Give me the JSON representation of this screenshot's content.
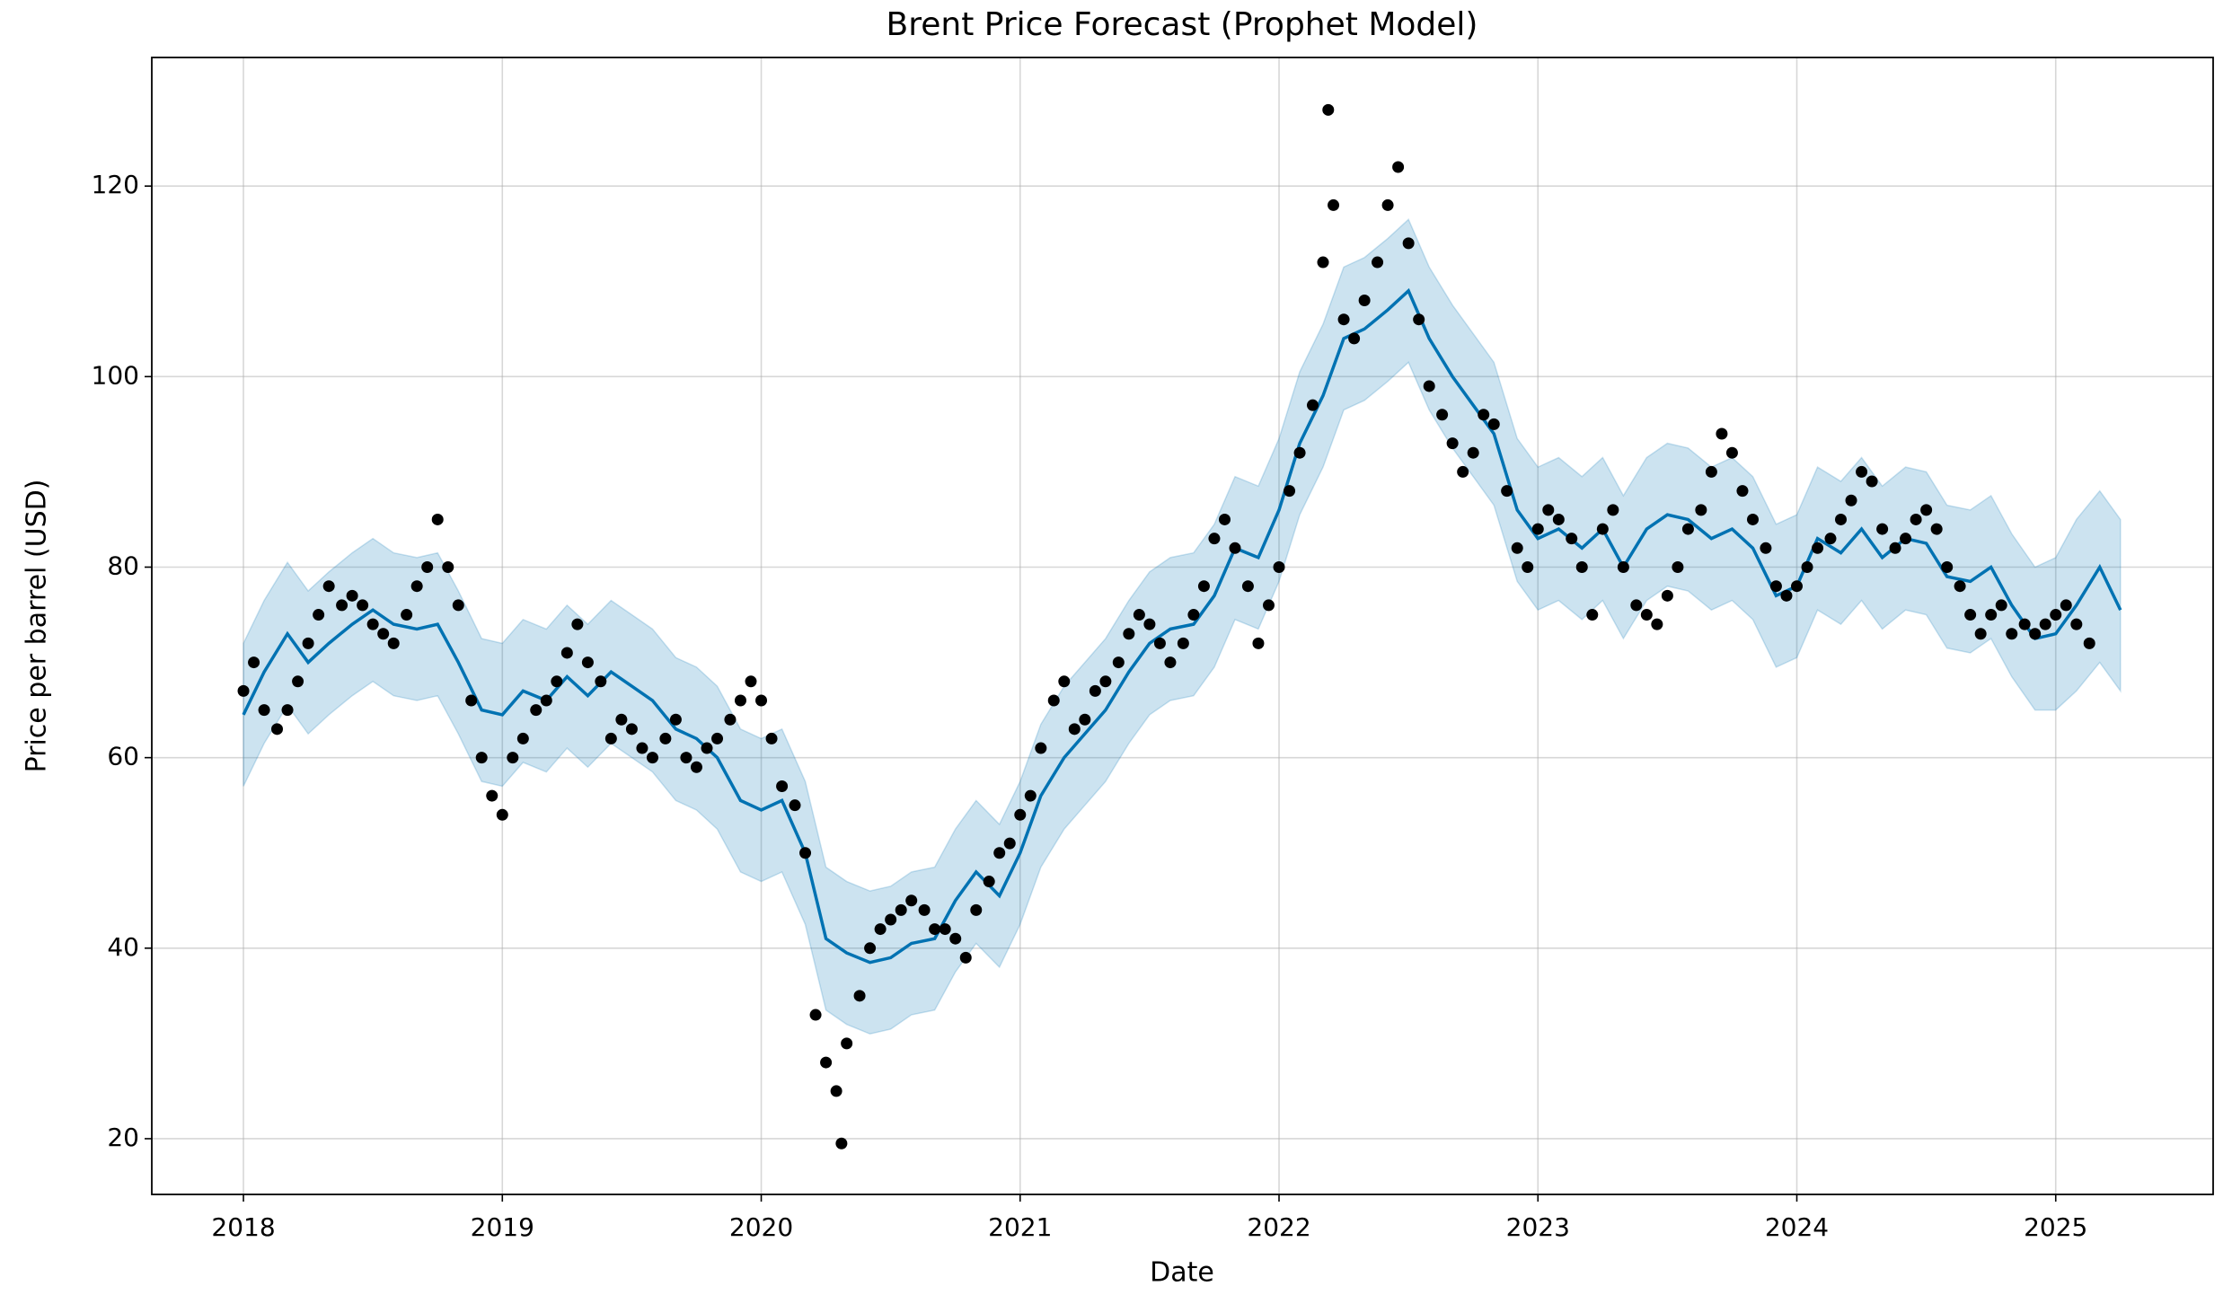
{
  "chart_data": {
    "type": "forecast",
    "title": "Brent Price Forecast (Prophet Model)",
    "x_label": "Date",
    "y_label": "Price per barrel (USD)",
    "xlim": [
      2017.646,
      2025.608
    ],
    "ylim": [
      14.15,
      133.5
    ],
    "xticks": [
      2018,
      2019,
      2020,
      2021,
      2022,
      2023,
      2024,
      2025
    ],
    "yticks": [
      20,
      40,
      60,
      80,
      100,
      120
    ],
    "grid": true,
    "series": [
      {
        "type": "scatter",
        "color": "#000000",
        "x": [
          2018.0,
          2018.04,
          2018.08,
          2018.13,
          2018.17,
          2018.21,
          2018.25,
          2018.29,
          2018.33,
          2018.38,
          2018.42,
          2018.46,
          2018.5,
          2018.54,
          2018.58,
          2018.63,
          2018.67,
          2018.71,
          2018.75,
          2018.79,
          2018.83,
          2018.88,
          2018.92,
          2018.96,
          2019.0,
          2019.04,
          2019.08,
          2019.13,
          2019.17,
          2019.21,
          2019.25,
          2019.29,
          2019.33,
          2019.38,
          2019.42,
          2019.46,
          2019.5,
          2019.54,
          2019.58,
          2019.63,
          2019.67,
          2019.71,
          2019.75,
          2019.79,
          2019.83,
          2019.88,
          2019.92,
          2019.96,
          2020.0,
          2020.04,
          2020.08,
          2020.13,
          2020.17,
          2020.21,
          2020.25,
          2020.29,
          2020.31,
          2020.33,
          2020.38,
          2020.42,
          2020.46,
          2020.5,
          2020.54,
          2020.58,
          2020.63,
          2020.67,
          2020.71,
          2020.75,
          2020.79,
          2020.83,
          2020.88,
          2020.92,
          2020.96,
          2021.0,
          2021.04,
          2021.08,
          2021.13,
          2021.17,
          2021.21,
          2021.25,
          2021.29,
          2021.33,
          2021.38,
          2021.42,
          2021.46,
          2021.5,
          2021.54,
          2021.58,
          2021.63,
          2021.67,
          2021.71,
          2021.75,
          2021.79,
          2021.83,
          2021.88,
          2021.92,
          2021.96,
          2022.0,
          2022.04,
          2022.08,
          2022.13,
          2022.17,
          2022.19,
          2022.21,
          2022.25,
          2022.29,
          2022.33,
          2022.38,
          2022.42,
          2022.46,
          2022.5,
          2022.54,
          2022.58,
          2022.63,
          2022.67,
          2022.71,
          2022.75,
          2022.79,
          2022.83,
          2022.88,
          2022.92,
          2022.96,
          2023.0,
          2023.04,
          2023.08,
          2023.13,
          2023.17,
          2023.21,
          2023.25,
          2023.29,
          2023.33,
          2023.38,
          2023.42,
          2023.46,
          2023.5,
          2023.54,
          2023.58,
          2023.63,
          2023.67,
          2023.71,
          2023.75,
          2023.79,
          2023.83,
          2023.88,
          2023.92,
          2023.96,
          2024.0,
          2024.04,
          2024.08,
          2024.13,
          2024.17,
          2024.21,
          2024.25,
          2024.29,
          2024.33,
          2024.38,
          2024.42,
          2024.46,
          2024.5,
          2024.54,
          2024.58,
          2024.63,
          2024.67,
          2024.71,
          2024.75,
          2024.79,
          2024.83,
          2024.88,
          2024.92,
          2024.96,
          2025.0,
          2025.04,
          2025.08,
          2025.13
        ],
        "values": [
          67,
          70,
          65,
          63,
          65,
          68,
          72,
          75,
          78,
          76,
          77,
          76,
          74,
          73,
          72,
          75,
          78,
          80,
          85,
          80,
          76,
          66,
          60,
          56,
          54,
          60,
          62,
          65,
          66,
          68,
          71,
          74,
          70,
          68,
          62,
          64,
          63,
          61,
          60,
          62,
          64,
          60,
          59,
          61,
          62,
          64,
          66,
          68,
          66,
          62,
          57,
          55,
          50,
          33,
          28,
          25,
          19.5,
          30,
          35,
          40,
          42,
          43,
          44,
          45,
          44,
          42,
          42,
          41,
          39,
          44,
          47,
          50,
          51,
          54,
          56,
          61,
          66,
          68,
          63,
          64,
          67,
          68,
          70,
          73,
          75,
          74,
          72,
          70,
          72,
          75,
          78,
          83,
          85,
          82,
          78,
          72,
          76,
          80,
          88,
          92,
          97,
          112,
          128,
          118,
          106,
          104,
          108,
          112,
          118,
          122,
          114,
          106,
          99,
          96,
          93,
          90,
          92,
          96,
          95,
          88,
          82,
          80,
          84,
          86,
          85,
          83,
          80,
          75,
          84,
          86,
          80,
          76,
          75,
          74,
          77,
          80,
          84,
          86,
          90,
          94,
          92,
          88,
          85,
          82,
          78,
          77,
          78,
          80,
          82,
          83,
          85,
          87,
          90,
          89,
          84,
          82,
          83,
          85,
          86,
          84,
          80,
          78,
          75,
          73,
          75,
          76,
          73,
          74,
          73,
          74,
          75,
          76,
          74,
          72
        ]
      },
      {
        "type": "line",
        "color": "#0072b2",
        "x": [
          2018.0,
          2018.08,
          2018.17,
          2018.25,
          2018.33,
          2018.42,
          2018.5,
          2018.58,
          2018.67,
          2018.75,
          2018.83,
          2018.92,
          2019.0,
          2019.08,
          2019.17,
          2019.25,
          2019.33,
          2019.42,
          2019.5,
          2019.58,
          2019.67,
          2019.75,
          2019.83,
          2019.92,
          2020.0,
          2020.08,
          2020.17,
          2020.25,
          2020.33,
          2020.42,
          2020.5,
          2020.58,
          2020.67,
          2020.75,
          2020.83,
          2020.92,
          2021.0,
          2021.08,
          2021.17,
          2021.25,
          2021.33,
          2021.42,
          2021.5,
          2021.58,
          2021.67,
          2021.75,
          2021.83,
          2021.92,
          2022.0,
          2022.08,
          2022.17,
          2022.25,
          2022.33,
          2022.42,
          2022.5,
          2022.58,
          2022.67,
          2022.75,
          2022.83,
          2022.92,
          2023.0,
          2023.08,
          2023.17,
          2023.25,
          2023.33,
          2023.42,
          2023.5,
          2023.58,
          2023.67,
          2023.75,
          2023.83,
          2023.92,
          2024.0,
          2024.08,
          2024.17,
          2024.25,
          2024.33,
          2024.42,
          2024.5,
          2024.58,
          2024.67,
          2024.75,
          2024.83,
          2024.92,
          2025.0,
          2025.08,
          2025.17,
          2025.25
        ],
        "values": [
          64.5,
          69,
          73,
          70,
          72,
          74,
          75.5,
          74,
          73.5,
          74,
          70,
          65,
          64.5,
          67,
          66,
          68.5,
          66.5,
          69,
          67.5,
          66,
          63,
          62,
          60,
          55.5,
          54.5,
          55.5,
          50,
          41,
          39.5,
          38.5,
          39,
          40.5,
          41,
          45,
          48,
          45.5,
          50,
          56,
          60,
          62.5,
          65,
          69,
          72,
          73.5,
          74,
          77,
          82,
          81,
          86,
          93,
          98,
          104,
          105,
          107,
          109,
          104,
          100,
          97,
          94,
          86,
          83,
          84,
          82,
          84,
          80,
          84,
          85.5,
          85,
          83,
          84,
          82,
          77,
          78,
          83,
          81.5,
          84,
          81,
          83,
          82.5,
          79,
          78.5,
          80,
          76,
          72.5,
          73,
          76,
          80,
          75.5
        ]
      },
      {
        "type": "band",
        "color": "#0072b2",
        "x": [
          2018.0,
          2018.08,
          2018.17,
          2018.25,
          2018.33,
          2018.42,
          2018.5,
          2018.58,
          2018.67,
          2018.75,
          2018.83,
          2018.92,
          2019.0,
          2019.08,
          2019.17,
          2019.25,
          2019.33,
          2019.42,
          2019.5,
          2019.58,
          2019.67,
          2019.75,
          2019.83,
          2019.92,
          2020.0,
          2020.08,
          2020.17,
          2020.25,
          2020.33,
          2020.42,
          2020.5,
          2020.58,
          2020.67,
          2020.75,
          2020.83,
          2020.92,
          2021.0,
          2021.08,
          2021.17,
          2021.25,
          2021.33,
          2021.42,
          2021.5,
          2021.58,
          2021.67,
          2021.75,
          2021.83,
          2021.92,
          2022.0,
          2022.08,
          2022.17,
          2022.25,
          2022.33,
          2022.42,
          2022.5,
          2022.58,
          2022.67,
          2022.75,
          2022.83,
          2022.92,
          2023.0,
          2023.08,
          2023.17,
          2023.25,
          2023.33,
          2023.42,
          2023.5,
          2023.58,
          2023.67,
          2023.75,
          2023.83,
          2023.92,
          2024.0,
          2024.08,
          2024.17,
          2024.25,
          2024.33,
          2024.42,
          2024.5,
          2024.58,
          2024.67,
          2024.75,
          2024.83,
          2024.92,
          2025.0,
          2025.08,
          2025.17,
          2025.25
        ],
        "upper": [
          72,
          76.5,
          80.5,
          77.5,
          79.5,
          81.5,
          83,
          81.5,
          81,
          81.5,
          77.5,
          72.5,
          72,
          74.5,
          73.5,
          76,
          74,
          76.5,
          75,
          73.5,
          70.5,
          69.5,
          67.5,
          63,
          62,
          63,
          57.5,
          48.5,
          47,
          46,
          46.5,
          48,
          48.5,
          52.5,
          55.5,
          53,
          57.5,
          63.5,
          67.5,
          70,
          72.5,
          76.5,
          79.5,
          81,
          81.5,
          84.5,
          89.5,
          88.5,
          93.5,
          100.5,
          105.5,
          111.5,
          112.5,
          114.5,
          116.5,
          111.5,
          107.5,
          104.5,
          101.5,
          93.5,
          90.5,
          91.5,
          89.5,
          91.5,
          87.5,
          91.5,
          93,
          92.5,
          90.5,
          91.5,
          89.5,
          84.5,
          85.5,
          90.5,
          89,
          91.5,
          88.5,
          90.5,
          90,
          86.5,
          86,
          87.5,
          83.5,
          80,
          81,
          85,
          88,
          85
        ],
        "lower": [
          57,
          61.5,
          65.5,
          62.5,
          64.5,
          66.5,
          68,
          66.5,
          66,
          66.5,
          62.5,
          57.5,
          57,
          59.5,
          58.5,
          61,
          59,
          61.5,
          60,
          58.5,
          55.5,
          54.5,
          52.5,
          48,
          47,
          48,
          42.5,
          33.5,
          32,
          31,
          31.5,
          33,
          33.5,
          37.5,
          40.5,
          38,
          42.5,
          48.5,
          52.5,
          55,
          57.5,
          61.5,
          64.5,
          66,
          66.5,
          69.5,
          74.5,
          73.5,
          78.5,
          85.5,
          90.5,
          96.5,
          97.5,
          99.5,
          101.5,
          96.5,
          92.5,
          89.5,
          86.5,
          78.5,
          75.5,
          76.5,
          74.5,
          76.5,
          72.5,
          76.5,
          78,
          77.5,
          75.5,
          76.5,
          74.5,
          69.5,
          70.5,
          75.5,
          74,
          76.5,
          73.5,
          75.5,
          75,
          71.5,
          71,
          72.5,
          68.5,
          65,
          65,
          67,
          70,
          67
        ]
      }
    ]
  }
}
